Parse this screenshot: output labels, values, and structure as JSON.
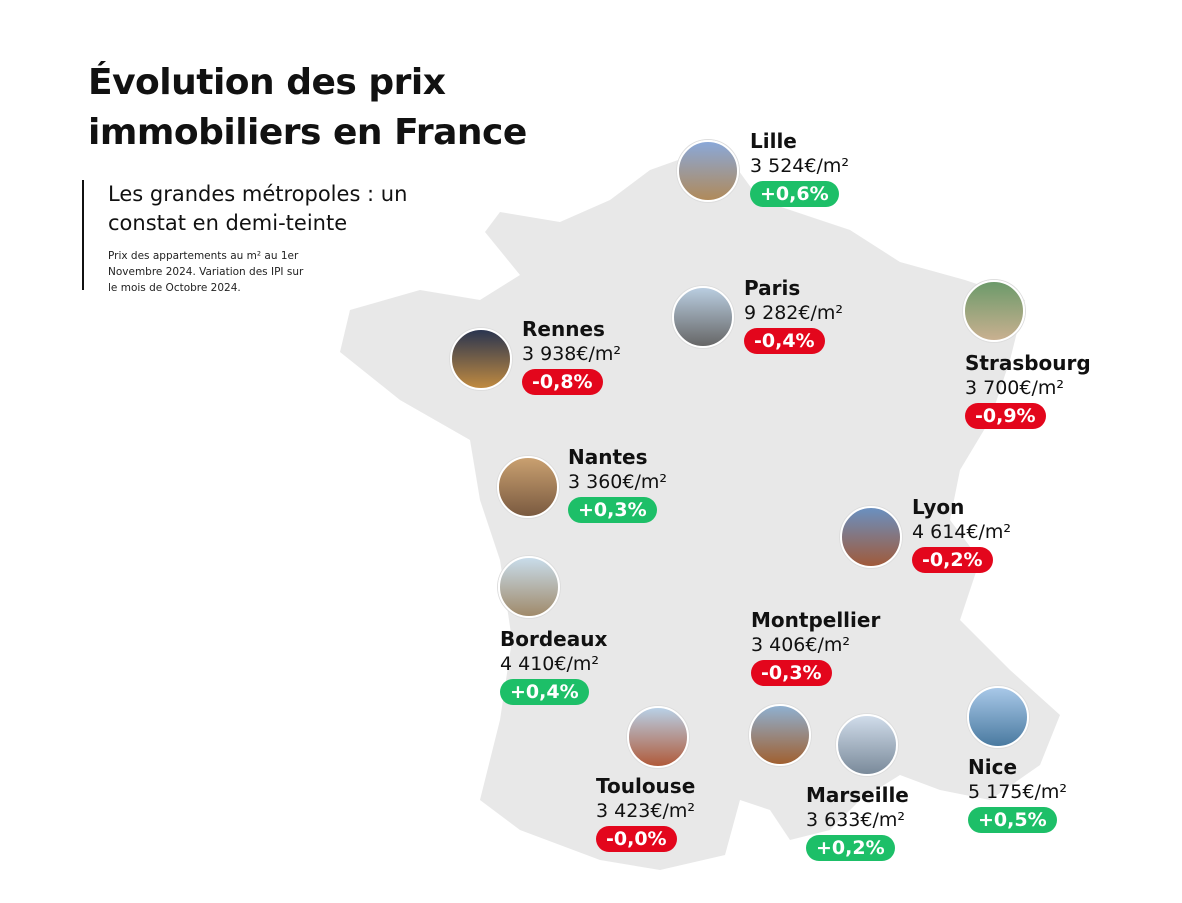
{
  "title": "Évolution des prix immobiliers en France",
  "subtitle": "Les grandes métropoles : un constat en demi-teinte",
  "note": "Prix des appartements au m² au 1er Novembre 2024. Variation des IPI sur le mois de Octobre 2024.",
  "colors": {
    "up": "#1dbf68",
    "down": "#e3061c",
    "map": "#e8e8e8"
  },
  "cities": [
    {
      "name": "Lille",
      "price": "3 524€/m²",
      "change": "+0,6%",
      "dir": "up"
    },
    {
      "name": "Paris",
      "price": "9 282€/m²",
      "change": "-0,4%",
      "dir": "down"
    },
    {
      "name": "Rennes",
      "price": "3 938€/m²",
      "change": "-0,8%",
      "dir": "down"
    },
    {
      "name": "Strasbourg",
      "price": "3 700€/m²",
      "change": "-0,9%",
      "dir": "down"
    },
    {
      "name": "Nantes",
      "price": "3 360€/m²",
      "change": "+0,3%",
      "dir": "up"
    },
    {
      "name": "Lyon",
      "price": "4 614€/m²",
      "change": "-0,2%",
      "dir": "down"
    },
    {
      "name": "Bordeaux",
      "price": "4 410€/m²",
      "change": "+0,4%",
      "dir": "up"
    },
    {
      "name": "Montpellier",
      "price": "3 406€/m²",
      "change": "-0,3%",
      "dir": "down"
    },
    {
      "name": "Toulouse",
      "price": "3 423€/m²",
      "change": "-0,0%",
      "dir": "down"
    },
    {
      "name": "Marseille",
      "price": "3 633€/m²",
      "change": "+0,2%",
      "dir": "up"
    },
    {
      "name": "Nice",
      "price": "5 175€/m²",
      "change": "+0,5%",
      "dir": "up"
    }
  ]
}
